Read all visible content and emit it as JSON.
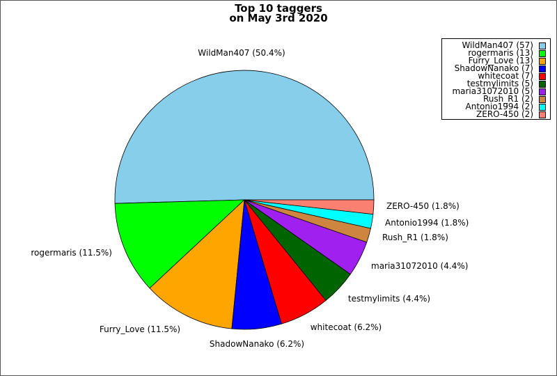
{
  "chart_data": {
    "type": "pie",
    "title": "Top 10 taggers",
    "subtitle": "on May 3rd 2020",
    "legend_position": "top-right",
    "slices": [
      {
        "name": "WildMan407",
        "value": 57,
        "percent_label": "WildMan407 (50.4%)",
        "legend_label": "WildMan407 (57)",
        "color": "#87ceeb"
      },
      {
        "name": "rogermaris",
        "value": 13,
        "percent_label": "rogermaris (11.5%)",
        "legend_label": "rogermaris (13)",
        "color": "#00ff00"
      },
      {
        "name": "Furry_Love",
        "value": 13,
        "percent_label": "Furry_Love (11.5%)",
        "legend_label": "Furry_Love (13)",
        "color": "#ffa500"
      },
      {
        "name": "ShadowNanako",
        "value": 7,
        "percent_label": "ShadowNanako (6.2%)",
        "legend_label": "ShadowNanako (7)",
        "color": "#0000ff"
      },
      {
        "name": "whitecoat",
        "value": 7,
        "percent_label": "whitecoat (6.2%)",
        "legend_label": "whitecoat (7)",
        "color": "#ff0000"
      },
      {
        "name": "testmylimits",
        "value": 5,
        "percent_label": "testmylimits (4.4%)",
        "legend_label": "testmylimits (5)",
        "color": "#006400"
      },
      {
        "name": "maria31072010",
        "value": 5,
        "percent_label": "maria31072010 (4.4%)",
        "legend_label": "maria31072010 (5)",
        "color": "#a020f0"
      },
      {
        "name": "Rush_R1",
        "value": 2,
        "percent_label": "Rush_R1 (1.8%)",
        "legend_label": "Rush_R1 (2)",
        "color": "#cd853f"
      },
      {
        "name": "Antonio1994",
        "value": 2,
        "percent_label": "Antonio1994 (1.8%)",
        "legend_label": "Antonio1994 (2)",
        "color": "#00ffff"
      },
      {
        "name": "ZERO-450",
        "value": 2,
        "percent_label": "ZERO-450 (1.8%)",
        "legend_label": "ZERO-450 (2)",
        "color": "#fa8072"
      }
    ]
  }
}
